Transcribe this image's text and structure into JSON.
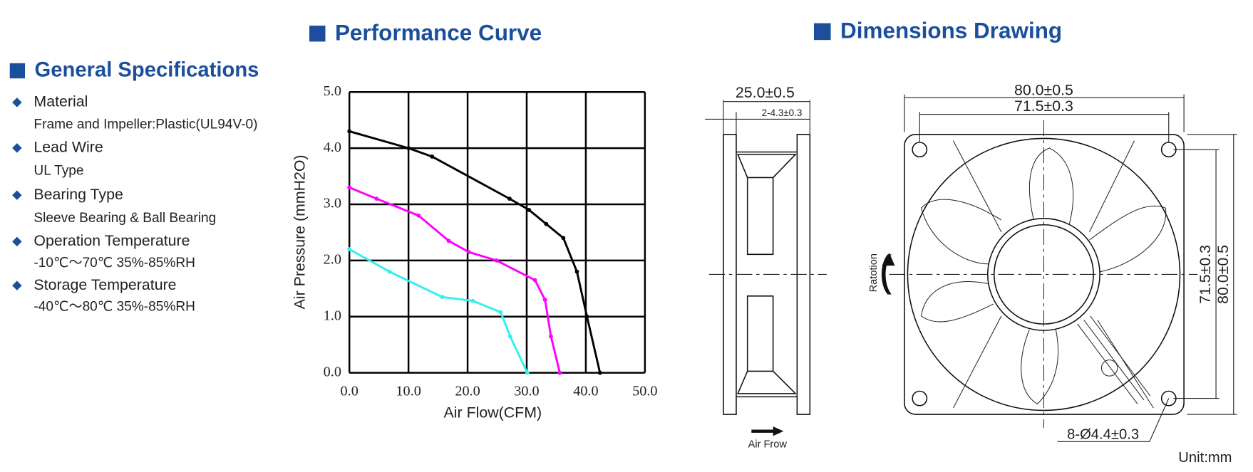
{
  "specs": {
    "title": "General Specifications",
    "items": [
      {
        "label": "Material",
        "value": "Frame and Impeller:Plastic(UL94V-0)"
      },
      {
        "label": "Lead Wire",
        "value": "UL Type"
      },
      {
        "label": "Bearing Type",
        "value": "Sleeve Bearing & Ball Bearing"
      },
      {
        "label": "Operation Temperature",
        "value": "-10℃～70℃  35%-85%RH"
      },
      {
        "label": "Storage Temperature",
        "value": "-40℃～80℃  35%-85%RH"
      }
    ]
  },
  "chart_data": {
    "type": "line",
    "title": "Performance Curve",
    "x_label": "Air Flow(CFM)",
    "y_label": "Air Pressure (mmH2O)",
    "xlim": [
      0,
      50
    ],
    "ylim": [
      0,
      5
    ],
    "xticks": [
      {
        "value": 0,
        "label": "0.0"
      },
      {
        "value": 10,
        "label": "10.0"
      },
      {
        "value": 20,
        "label": "20.0"
      },
      {
        "value": 30,
        "label": "30.0"
      },
      {
        "value": 40,
        "label": "40.0"
      },
      {
        "value": 50,
        "label": "50.0"
      }
    ],
    "yticks": [
      {
        "value": 0,
        "label": "0.0"
      },
      {
        "value": 1,
        "label": "1.0"
      },
      {
        "value": 2,
        "label": "2.0"
      },
      {
        "value": 3,
        "label": "3.0"
      },
      {
        "value": 4,
        "label": "4.0"
      },
      {
        "value": 5,
        "label": "5.0"
      }
    ],
    "grid": true,
    "series": [
      {
        "color": "#000000",
        "x": [
          0,
          10,
          14,
          27.1,
          30.4,
          33.3,
          36.2,
          38.5,
          40.2,
          42.4
        ],
        "values": [
          4.3,
          4.0,
          3.85,
          3.1,
          2.9,
          2.65,
          2.4,
          1.8,
          1.0,
          0
        ]
      },
      {
        "color": "#ff00ff",
        "x": [
          0,
          4.6,
          11.7,
          16.8,
          20.2,
          24.9,
          31.4,
          33.1,
          34.1,
          35.6
        ],
        "values": [
          3.3,
          3.1,
          2.8,
          2.35,
          2.15,
          2.0,
          1.65,
          1.3,
          0.65,
          0
        ]
      },
      {
        "color": "#33f0f0",
        "x": [
          0,
          6.8,
          15.7,
          20.9,
          25.6,
          27.2,
          30.1
        ],
        "values": [
          2.2,
          1.8,
          1.35,
          1.28,
          1.08,
          0.65,
          0
        ]
      }
    ]
  },
  "dimensions": {
    "title": "Dimensions Drawing",
    "depth": "25.0±0.5",
    "flange": "2-4.3±0.3",
    "airflow": "Air Frow",
    "rotation": "Ratotion",
    "width": "80.0±0.5",
    "hole_spacing": "71.5±0.3",
    "hole_spacing_v": "71.5±0.3",
    "height": "80.0±0.5",
    "holes": "8-Ø4.4±0.3",
    "unit": "Unit:mm"
  }
}
